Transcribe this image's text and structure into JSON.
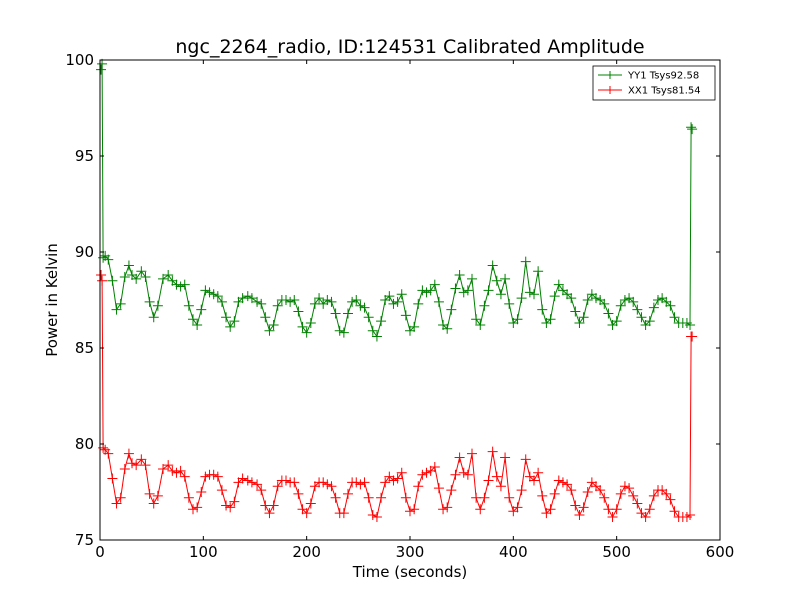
{
  "chart_data": {
    "type": "line",
    "title": "ngc_2264_radio, ID:124531 Calibrated Amplitude",
    "xlabel": "Time (seconds)",
    "ylabel": "Power in Kelvin",
    "xlim": [
      0,
      600
    ],
    "ylim": [
      75,
      100
    ],
    "xticks": [
      0,
      100,
      200,
      300,
      400,
      500,
      600
    ],
    "yticks": [
      75,
      80,
      85,
      90,
      95,
      100
    ],
    "grid": false,
    "legend_position": "top-right",
    "series": [
      {
        "name": "YY1 Tsys92.58",
        "color": "#008000",
        "x": [
          1,
          2,
          3,
          5,
          8,
          12,
          16,
          20,
          24,
          28,
          31,
          35,
          40,
          44,
          48,
          52,
          56,
          61,
          66,
          70,
          74,
          78,
          82,
          86,
          90,
          94,
          98,
          102,
          106,
          110,
          114,
          118,
          122,
          126,
          130,
          134,
          138,
          143,
          147,
          152,
          156,
          160,
          164,
          168,
          172,
          176,
          180,
          184,
          188,
          192,
          196,
          200,
          204,
          208,
          212,
          216,
          220,
          224,
          228,
          232,
          236,
          240,
          244,
          248,
          252,
          256,
          260,
          264,
          268,
          272,
          276,
          280,
          284,
          288,
          292,
          296,
          300,
          304,
          308,
          312,
          316,
          320,
          324,
          328,
          332,
          336,
          340,
          344,
          348,
          352,
          356,
          360,
          364,
          368,
          372,
          376,
          380,
          384,
          388,
          392,
          396,
          400,
          404,
          408,
          412,
          416,
          420,
          424,
          428,
          432,
          436,
          440,
          444,
          448,
          452,
          456,
          460,
          464,
          468,
          472,
          476,
          480,
          484,
          488,
          492,
          496,
          500,
          504,
          508,
          512,
          516,
          520,
          524,
          528,
          532,
          536,
          540,
          544,
          548,
          552,
          556,
          560,
          564,
          568,
          571,
          572,
          573
        ],
        "y": [
          99.5,
          99.8,
          89.7,
          89.8,
          89.6,
          88.5,
          87.0,
          87.3,
          88.7,
          89.3,
          88.8,
          88.6,
          89.0,
          88.7,
          87.4,
          86.6,
          87.2,
          88.6,
          88.8,
          88.5,
          88.3,
          88.2,
          88.3,
          87.2,
          86.5,
          86.2,
          87.0,
          88.0,
          87.9,
          87.8,
          87.7,
          87.4,
          86.6,
          86.1,
          86.4,
          87.4,
          87.6,
          87.7,
          87.6,
          87.4,
          87.3,
          86.6,
          85.9,
          86.2,
          87.2,
          87.5,
          87.5,
          87.4,
          87.5,
          86.9,
          86.1,
          85.8,
          86.3,
          87.3,
          87.6,
          87.3,
          87.5,
          87.4,
          86.8,
          85.9,
          85.8,
          86.8,
          87.4,
          87.5,
          87.2,
          87.1,
          86.6,
          85.9,
          85.6,
          86.4,
          87.5,
          87.7,
          87.3,
          87.4,
          87.8,
          86.7,
          85.9,
          86.1,
          87.3,
          88.0,
          87.9,
          88.0,
          88.3,
          87.4,
          86.2,
          86.0,
          87.0,
          88.1,
          88.8,
          87.9,
          88.0,
          88.6,
          86.5,
          86.2,
          87.2,
          88.0,
          89.3,
          88.5,
          87.8,
          88.6,
          87.3,
          86.3,
          86.5,
          87.6,
          89.5,
          87.9,
          87.8,
          89.0,
          87.0,
          86.3,
          86.5,
          87.7,
          88.3,
          88.0,
          87.8,
          87.6,
          86.9,
          86.3,
          86.6,
          87.5,
          87.8,
          87.6,
          87.5,
          87.3,
          86.8,
          86.2,
          86.4,
          87.2,
          87.5,
          87.6,
          87.4,
          87.0,
          86.6,
          86.2,
          86.4,
          87.1,
          87.5,
          87.6,
          87.4,
          87.2,
          86.6,
          86.3,
          86.3,
          86.3,
          86.2,
          96.5,
          96.4
        ]
      },
      {
        "name": "XX1 Tsys81.54",
        "color": "#ff0000",
        "x": [
          1,
          2,
          3,
          5,
          8,
          12,
          16,
          20,
          24,
          28,
          31,
          35,
          40,
          44,
          48,
          52,
          56,
          61,
          66,
          70,
          74,
          78,
          82,
          86,
          90,
          94,
          98,
          102,
          106,
          110,
          114,
          118,
          122,
          126,
          130,
          134,
          138,
          143,
          147,
          152,
          156,
          160,
          164,
          168,
          172,
          176,
          180,
          184,
          188,
          192,
          196,
          200,
          204,
          208,
          212,
          216,
          220,
          224,
          228,
          232,
          236,
          240,
          244,
          248,
          252,
          256,
          260,
          264,
          268,
          272,
          276,
          280,
          284,
          288,
          292,
          296,
          300,
          304,
          308,
          312,
          316,
          320,
          324,
          328,
          332,
          336,
          340,
          344,
          348,
          352,
          356,
          360,
          364,
          368,
          372,
          376,
          380,
          384,
          388,
          392,
          396,
          400,
          404,
          408,
          412,
          416,
          420,
          424,
          428,
          432,
          436,
          440,
          444,
          448,
          452,
          456,
          460,
          464,
          468,
          472,
          476,
          480,
          484,
          488,
          492,
          496,
          500,
          504,
          508,
          512,
          516,
          520,
          524,
          528,
          532,
          536,
          540,
          544,
          548,
          552,
          556,
          560,
          564,
          568,
          571,
          572,
          573
        ],
        "y": [
          88.8,
          88.5,
          79.8,
          79.7,
          79.5,
          78.2,
          76.9,
          77.2,
          78.7,
          79.5,
          79.0,
          78.9,
          79.2,
          78.9,
          77.4,
          76.9,
          77.3,
          78.7,
          78.9,
          78.6,
          78.5,
          78.6,
          78.3,
          77.2,
          76.6,
          76.7,
          77.5,
          78.3,
          78.4,
          78.4,
          78.3,
          77.6,
          76.8,
          76.7,
          77.0,
          78.0,
          78.2,
          78.1,
          78.0,
          77.9,
          77.6,
          76.8,
          76.4,
          76.8,
          77.8,
          78.1,
          78.1,
          78.0,
          78.0,
          77.4,
          76.6,
          76.4,
          76.9,
          77.8,
          78.0,
          78.0,
          77.9,
          77.8,
          77.2,
          76.4,
          76.4,
          77.4,
          78.0,
          78.0,
          77.9,
          78.0,
          77.2,
          76.3,
          76.2,
          77.2,
          78.0,
          78.3,
          78.1,
          78.2,
          78.5,
          77.2,
          76.5,
          76.6,
          77.8,
          78.4,
          78.5,
          78.6,
          78.8,
          77.7,
          76.6,
          76.7,
          77.6,
          78.4,
          79.3,
          78.5,
          78.4,
          79.5,
          77.2,
          76.6,
          77.2,
          78.1,
          79.6,
          78.3,
          77.8,
          79.3,
          77.2,
          76.5,
          76.7,
          77.6,
          79.2,
          78.3,
          78.1,
          78.5,
          77.3,
          76.4,
          76.6,
          77.4,
          78.1,
          78.0,
          77.9,
          77.6,
          76.8,
          76.3,
          76.7,
          77.5,
          78.0,
          77.8,
          77.6,
          77.2,
          76.6,
          76.2,
          76.6,
          77.4,
          77.8,
          77.7,
          77.3,
          76.9,
          76.4,
          76.2,
          76.6,
          77.3,
          77.6,
          77.6,
          77.4,
          77.1,
          76.5,
          76.2,
          76.2,
          76.2,
          76.3,
          85.6,
          85.6
        ]
      }
    ]
  }
}
